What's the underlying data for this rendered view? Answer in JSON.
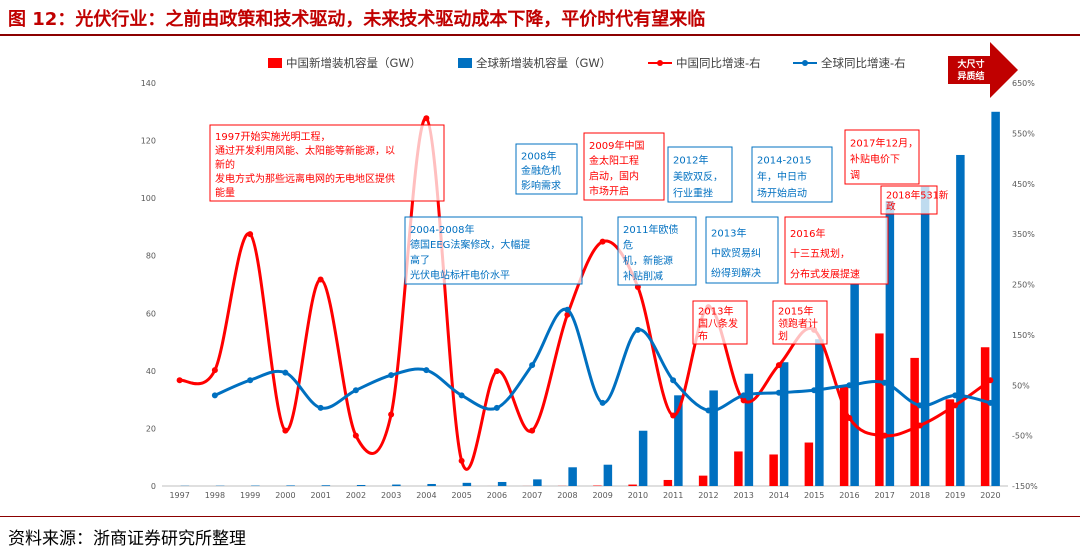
{
  "figure_title": "图 12：光伏行业：之前由政策和技术驱动，未来技术驱动成本下降，平价时代有望来临",
  "source": "资料来源：浙商证券研究所整理",
  "chart_data": {
    "type": "bar",
    "categories": [
      "1997",
      "1998",
      "1999",
      "2000",
      "2001",
      "2002",
      "2003",
      "2004",
      "2005",
      "2006",
      "2007",
      "2008",
      "2009",
      "2010",
      "2011",
      "2012",
      "2013",
      "2014",
      "2015",
      "2016",
      "2017",
      "2018",
      "2019",
      "2020"
    ],
    "ylim": [
      0,
      140
    ],
    "yticks": [
      0,
      20,
      40,
      60,
      80,
      100,
      120,
      140
    ],
    "ylim_right": [
      -150,
      650
    ],
    "yticks_right": [
      "-150%",
      "-50%",
      "50%",
      "150%",
      "250%",
      "350%",
      "450%",
      "550%",
      "650%"
    ],
    "yticks_right_values": [
      -150,
      -50,
      50,
      150,
      250,
      350,
      450,
      550,
      650
    ],
    "legend_position": "top",
    "series": [
      {
        "name": "中国新增装机容量（GW）",
        "type": "bar",
        "axis": "left",
        "color": "#ff0000",
        "values": [
          0.0,
          0.0,
          0.0,
          0.0,
          0.0,
          0.0,
          0.0,
          0.0,
          0.0,
          0.01,
          0.02,
          0.05,
          0.16,
          0.5,
          2.1,
          3.6,
          12.0,
          10.95,
          15.1,
          34.5,
          53.0,
          44.5,
          30.1,
          48.2
        ]
      },
      {
        "name": "全球新增装机容量（GW）",
        "type": "bar",
        "axis": "left",
        "color": "#0070c0",
        "values": [
          0.08,
          0.1,
          0.14,
          0.2,
          0.26,
          0.35,
          0.5,
          0.7,
          1.1,
          1.4,
          2.3,
          6.5,
          7.4,
          19.2,
          31.5,
          33.2,
          39.0,
          43.0,
          51.0,
          70.0,
          99.0,
          104.0,
          115.0,
          130.0
        ]
      },
      {
        "name": "中国同比增速-右",
        "type": "line",
        "axis": "right",
        "color": "#ff0000",
        "values": [
          60,
          80,
          350,
          -40,
          260,
          -50,
          -8,
          580,
          -100,
          78,
          -40,
          190,
          335,
          245,
          -10,
          205,
          20,
          90,
          160,
          -15,
          -50,
          -30,
          10,
          60
        ]
      },
      {
        "name": "全球同比增速-右",
        "type": "line",
        "axis": "right",
        "color": "#0070c0",
        "values": [
          null,
          30,
          60,
          75,
          5,
          40,
          70,
          80,
          30,
          5,
          90,
          200,
          15,
          160,
          60,
          0,
          30,
          35,
          40,
          50,
          55,
          10,
          30,
          15
        ]
      }
    ],
    "annotations": [
      {
        "id": "a1997",
        "lines": [
          "1997开始实施光明工程，",
          "通过开发利用风能、太阳能等新能源，以",
          "新的",
          "发电方式为那些远离电网的无电地区提供",
          "能量"
        ],
        "color": "#ff0000"
      },
      {
        "id": "a2004",
        "lines": [
          "2004-2008年",
          "德国EEG法案修改，大幅提",
          "高了",
          "光伏电站标杆电价水平"
        ],
        "color": "#0070c0"
      },
      {
        "id": "a2008",
        "lines": [
          "2008年",
          "金融危机",
          "影响需求"
        ],
        "color": "#0070c0"
      },
      {
        "id": "a2009",
        "lines": [
          "2009年中国",
          "金太阳工程",
          "启动，国内",
          "市场开启"
        ],
        "color": "#ff0000"
      },
      {
        "id": "a2012",
        "lines": [
          "2012年",
          "美欧双反，",
          "行业重挫"
        ],
        "color": "#0070c0"
      },
      {
        "id": "a2014",
        "lines": [
          "2014-2015",
          "年，中日市",
          "场开始启动"
        ],
        "color": "#0070c0"
      },
      {
        "id": "a2017",
        "lines": [
          "2017年12月，",
          "补贴电价下",
          "调"
        ],
        "color": "#ff0000"
      },
      {
        "id": "a2011",
        "lines": [
          "2011年欧债",
          "危",
          "机，新能源",
          "补贴削减"
        ],
        "color": "#0070c0"
      },
      {
        "id": "a2013b",
        "lines": [
          "2013年",
          "中欧贸易纠",
          "纷得到解决"
        ],
        "color": "#0070c0"
      },
      {
        "id": "a2016",
        "lines": [
          "2016年",
          "十三五规划，",
          "分布式发展提速"
        ],
        "color": "#ff0000"
      },
      {
        "id": "a2018",
        "lines": [
          "2018年531新",
          "政"
        ],
        "color": "#ff0000"
      },
      {
        "id": "a2013",
        "lines": [
          "2013年",
          "国八条发",
          "布"
        ],
        "color": "#ff0000"
      },
      {
        "id": "a2015",
        "lines": [
          "2015年",
          "领跑者计",
          "划"
        ],
        "color": "#ff0000"
      },
      {
        "id": "arrow",
        "lines": [
          "大尺寸",
          "异质结"
        ],
        "color": "#c00000"
      }
    ]
  }
}
